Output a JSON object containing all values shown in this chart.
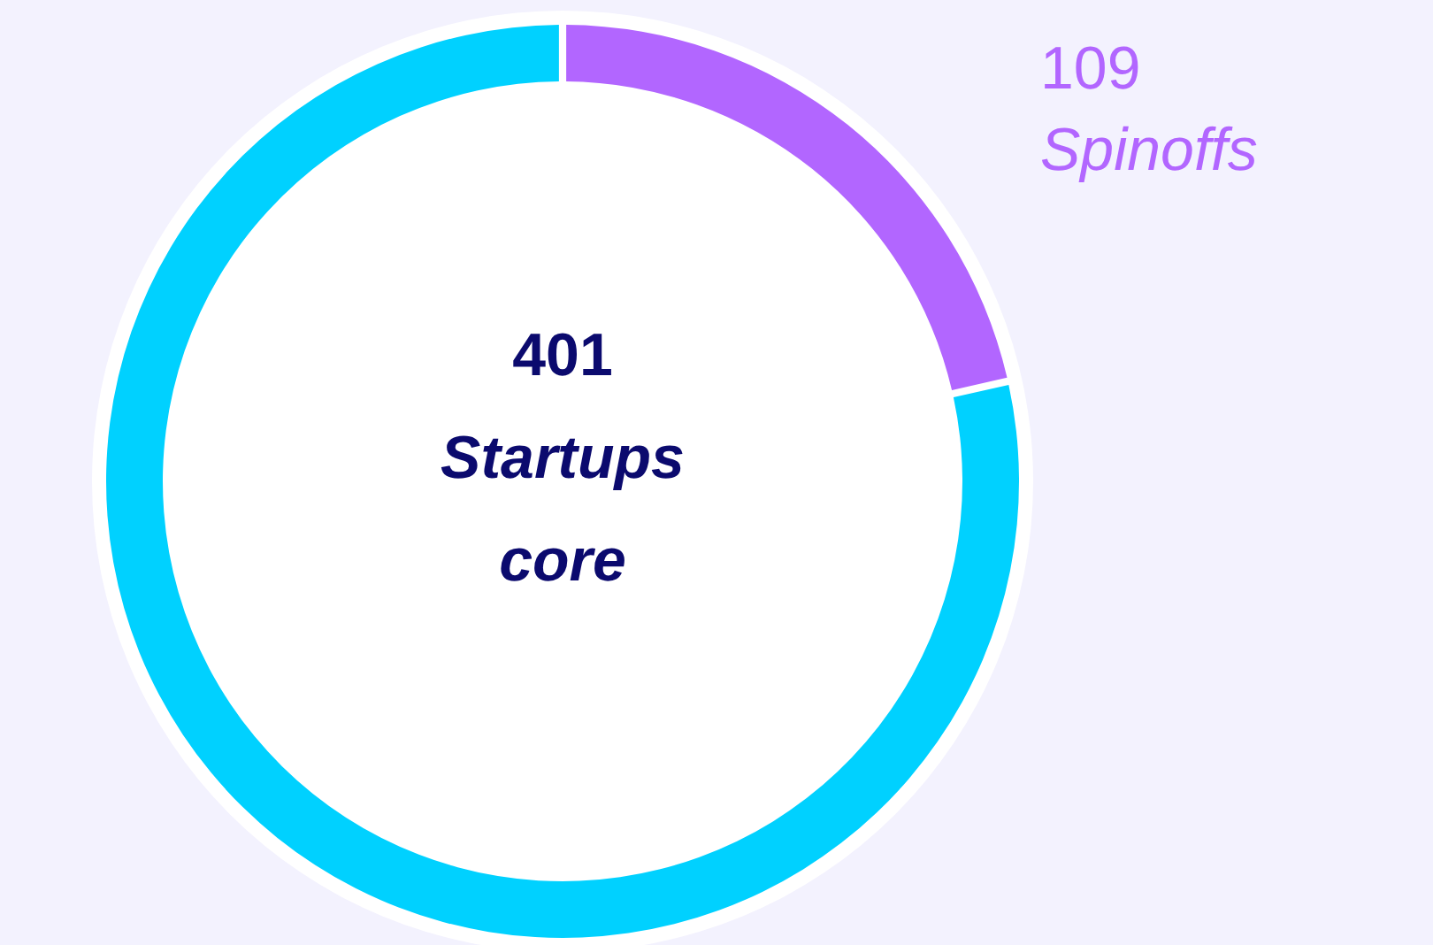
{
  "chart_data": {
    "type": "donut",
    "categories": [
      "Startups core",
      "Spinoffs"
    ],
    "values": [
      401,
      109
    ],
    "colors": [
      "#00d1ff",
      "#b266ff"
    ],
    "data_labels": true
  }
}
